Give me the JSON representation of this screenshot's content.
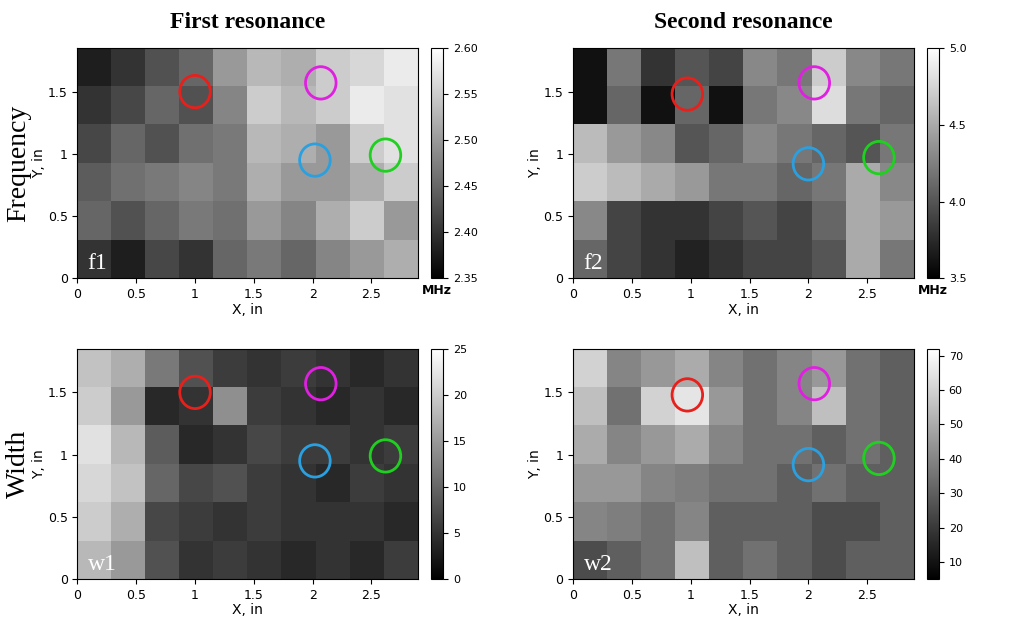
{
  "column_titles": [
    "First resonance",
    "Second resonance"
  ],
  "row_titles": [
    "Frequency",
    "Width"
  ],
  "chart_data": [
    {
      "type": "heatmap",
      "panel_label": "f1",
      "xlabel": "X, in",
      "ylabel": "Y, in",
      "xlim": [
        0,
        2.9
      ],
      "ylim": [
        0,
        1.85
      ],
      "xticks": [
        0,
        0.5,
        1,
        1.5,
        2,
        2.5
      ],
      "yticks": [
        0,
        0.5,
        1,
        1.5
      ],
      "cells": [
        [
          2.4,
          2.38,
          2.42,
          2.4,
          2.45,
          2.47,
          2.45,
          2.48,
          2.5,
          2.52
        ],
        [
          2.45,
          2.43,
          2.45,
          2.47,
          2.46,
          2.5,
          2.48,
          2.52,
          2.55,
          2.5
        ],
        [
          2.44,
          2.46,
          2.47,
          2.48,
          2.47,
          2.52,
          2.5,
          2.5,
          2.52,
          2.55
        ],
        [
          2.42,
          2.45,
          2.43,
          2.46,
          2.47,
          2.53,
          2.52,
          2.5,
          2.55,
          2.57
        ],
        [
          2.4,
          2.42,
          2.45,
          2.43,
          2.48,
          2.55,
          2.53,
          2.55,
          2.58,
          2.57
        ],
        [
          2.38,
          2.4,
          2.43,
          2.45,
          2.5,
          2.53,
          2.52,
          2.55,
          2.56,
          2.58
        ]
      ],
      "colorbar": {
        "range": [
          2.35,
          2.6
        ],
        "ticks": [
          2.35,
          {
            "value": 2.4,
            "label": "2.40"
          },
          2.45,
          {
            "value": 2.5,
            "label": "2.50"
          },
          2.55,
          {
            "value": 2.6,
            "label": "2.60"
          }
        ],
        "label": "MHz"
      },
      "circles": [
        {
          "x": 1.0,
          "y": 1.5,
          "r": 0.13,
          "color": "#e8201c"
        },
        {
          "x": 2.07,
          "y": 1.57,
          "r": 0.13,
          "color": "#e020e0"
        },
        {
          "x": 2.02,
          "y": 0.95,
          "r": 0.13,
          "color": "#2aa0e0"
        },
        {
          "x": 2.62,
          "y": 0.99,
          "r": 0.13,
          "color": "#20d020"
        }
      ]
    },
    {
      "type": "heatmap",
      "panel_label": "f2",
      "xlabel": "X, in",
      "ylabel": "Y, in",
      "xlim": [
        0,
        2.9
      ],
      "ylim": [
        0,
        1.85
      ],
      "xticks": [
        0,
        0.5,
        1,
        1.5,
        2,
        2.5
      ],
      "yticks": [
        0,
        0.5,
        1,
        1.5
      ],
      "cells": [
        [
          4.1,
          3.9,
          3.8,
          3.7,
          3.8,
          3.9,
          3.9,
          4.0,
          4.5,
          4.2
        ],
        [
          4.3,
          3.9,
          3.8,
          3.8,
          3.9,
          4.0,
          3.9,
          4.1,
          4.5,
          4.4
        ],
        [
          4.7,
          4.6,
          4.5,
          4.4,
          4.2,
          4.2,
          4.1,
          4.2,
          4.5,
          4.3
        ],
        [
          4.6,
          4.4,
          4.3,
          4.0,
          4.1,
          4.3,
          4.2,
          4.1,
          4.0,
          4.2
        ],
        [
          3.6,
          4.1,
          3.6,
          4.1,
          3.6,
          4.2,
          4.3,
          4.8,
          4.2,
          4.1
        ],
        [
          3.6,
          4.2,
          3.8,
          4.0,
          3.9,
          4.3,
          4.2,
          4.7,
          4.3,
          4.2
        ]
      ],
      "colorbar": {
        "range": [
          3.5,
          5.0
        ],
        "ticks": [
          3.5,
          {
            "value": 4.0,
            "label": "4.0"
          },
          4.5,
          {
            "value": 5.0,
            "label": "5.0"
          }
        ],
        "label": "MHz"
      },
      "circles": [
        {
          "x": 0.97,
          "y": 1.48,
          "r": 0.13,
          "color": "#e8201c"
        },
        {
          "x": 2.05,
          "y": 1.57,
          "r": 0.13,
          "color": "#e020e0"
        },
        {
          "x": 2.0,
          "y": 0.92,
          "r": 0.13,
          "color": "#2aa0e0"
        },
        {
          "x": 2.6,
          "y": 0.97,
          "r": 0.13,
          "color": "#20d020"
        }
      ]
    },
    {
      "type": "heatmap",
      "panel_label": "w1",
      "xlabel": "X, in",
      "ylabel": "Y, in",
      "xlim": [
        0,
        2.9
      ],
      "ylim": [
        0,
        1.85
      ],
      "xticks": [
        0,
        0.5,
        1,
        1.5,
        2,
        2.5
      ],
      "yticks": [
        0,
        0.5,
        1,
        1.5
      ],
      "cells": [
        [
          18,
          15,
          8,
          5,
          6,
          5,
          4,
          5,
          4,
          6
        ],
        [
          20,
          17,
          7,
          6,
          5,
          6,
          5,
          5,
          5,
          4
        ],
        [
          21,
          19,
          10,
          7,
          8,
          6,
          5,
          4,
          6,
          5
        ],
        [
          22,
          18,
          9,
          4,
          5,
          7,
          6,
          6,
          5,
          6
        ],
        [
          20,
          15,
          4,
          5,
          14,
          6,
          5,
          4,
          5,
          4
        ],
        [
          19,
          17,
          12,
          8,
          6,
          5,
          6,
          5,
          4,
          5
        ]
      ],
      "colorbar": {
        "range": [
          0,
          25
        ],
        "ticks": [
          0,
          5,
          10,
          15,
          20,
          25
        ]
      },
      "circles": [
        {
          "x": 1.0,
          "y": 1.5,
          "r": 0.13,
          "color": "#e8201c"
        },
        {
          "x": 2.07,
          "y": 1.57,
          "r": 0.13,
          "color": "#e020e0"
        },
        {
          "x": 2.02,
          "y": 0.95,
          "r": 0.13,
          "color": "#2aa0e0"
        },
        {
          "x": 2.62,
          "y": 0.99,
          "r": 0.13,
          "color": "#20d020"
        }
      ]
    },
    {
      "type": "heatmap",
      "panel_label": "w2",
      "xlabel": "X, in",
      "ylabel": "Y, in",
      "xlim": [
        0,
        2.9
      ],
      "ylim": [
        0,
        1.85
      ],
      "xticks": [
        0,
        0.5,
        1,
        1.5,
        2,
        2.5
      ],
      "yticks": [
        0,
        0.5,
        1,
        1.5
      ],
      "cells": [
        [
          25,
          30,
          35,
          55,
          30,
          35,
          30,
          25,
          30,
          30
        ],
        [
          40,
          38,
          35,
          40,
          30,
          30,
          30,
          25,
          25,
          30
        ],
        [
          45,
          45,
          40,
          38,
          35,
          35,
          30,
          35,
          30,
          30
        ],
        [
          50,
          40,
          45,
          50,
          40,
          35,
          35,
          30,
          35,
          30
        ],
        [
          55,
          35,
          60,
          65,
          45,
          35,
          40,
          55,
          35,
          30
        ],
        [
          60,
          40,
          45,
          50,
          40,
          35,
          40,
          45,
          35,
          30
        ]
      ],
      "colorbar": {
        "range": [
          5,
          72
        ],
        "ticks": [
          10,
          20,
          30,
          40,
          50,
          60,
          70
        ]
      },
      "circles": [
        {
          "x": 0.97,
          "y": 1.48,
          "r": 0.13,
          "color": "#e8201c"
        },
        {
          "x": 2.05,
          "y": 1.57,
          "r": 0.13,
          "color": "#e020e0"
        },
        {
          "x": 2.0,
          "y": 0.92,
          "r": 0.13,
          "color": "#2aa0e0"
        },
        {
          "x": 2.6,
          "y": 0.97,
          "r": 0.13,
          "color": "#20d020"
        }
      ]
    }
  ]
}
